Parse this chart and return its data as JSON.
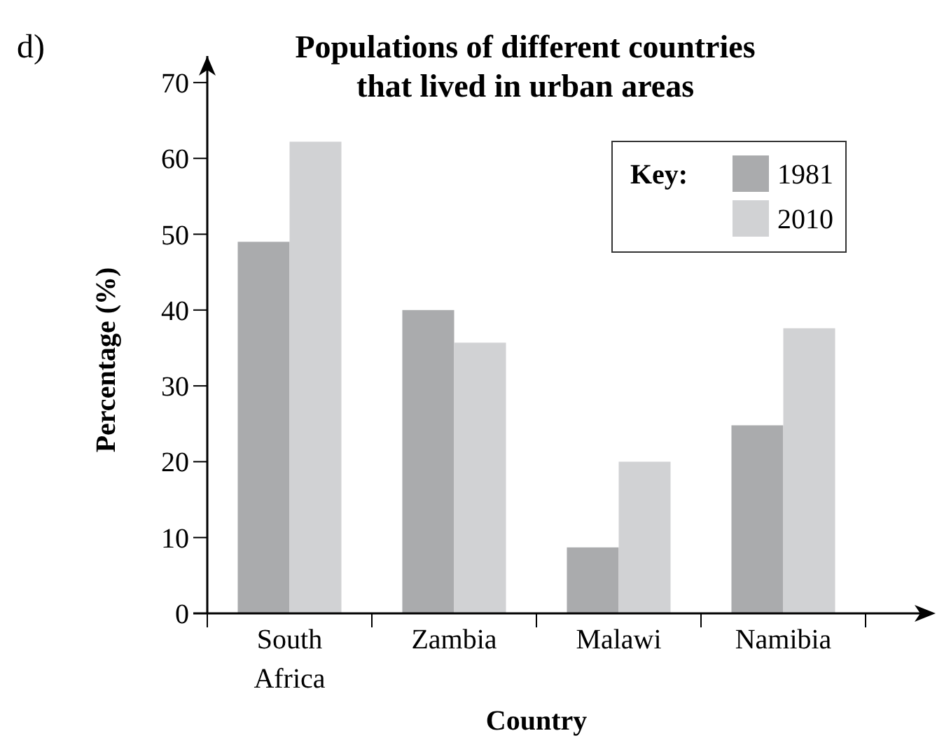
{
  "chart_data": {
    "type": "bar",
    "title": "Populations of different countries\nthat lived in urban areas",
    "xlabel": "Country",
    "ylabel": "Percentage (%)",
    "legend_title": "Key:",
    "annotations": [
      "d)"
    ],
    "categories": [
      "South\nAfrica",
      "Zambia",
      "Malawi",
      "Namibia"
    ],
    "series": [
      {
        "name": "1981",
        "color": "#aaabad",
        "values": [
          49,
          40,
          8.7,
          24.8
        ]
      },
      {
        "name": "2010",
        "color": "#d1d2d4",
        "values": [
          62.2,
          35.7,
          20,
          37.6
        ]
      }
    ],
    "ylim": [
      0,
      73.5
    ],
    "yticks": [
      0,
      10,
      20,
      30,
      40,
      50,
      60,
      70
    ],
    "grid": false,
    "legend": "top right"
  }
}
